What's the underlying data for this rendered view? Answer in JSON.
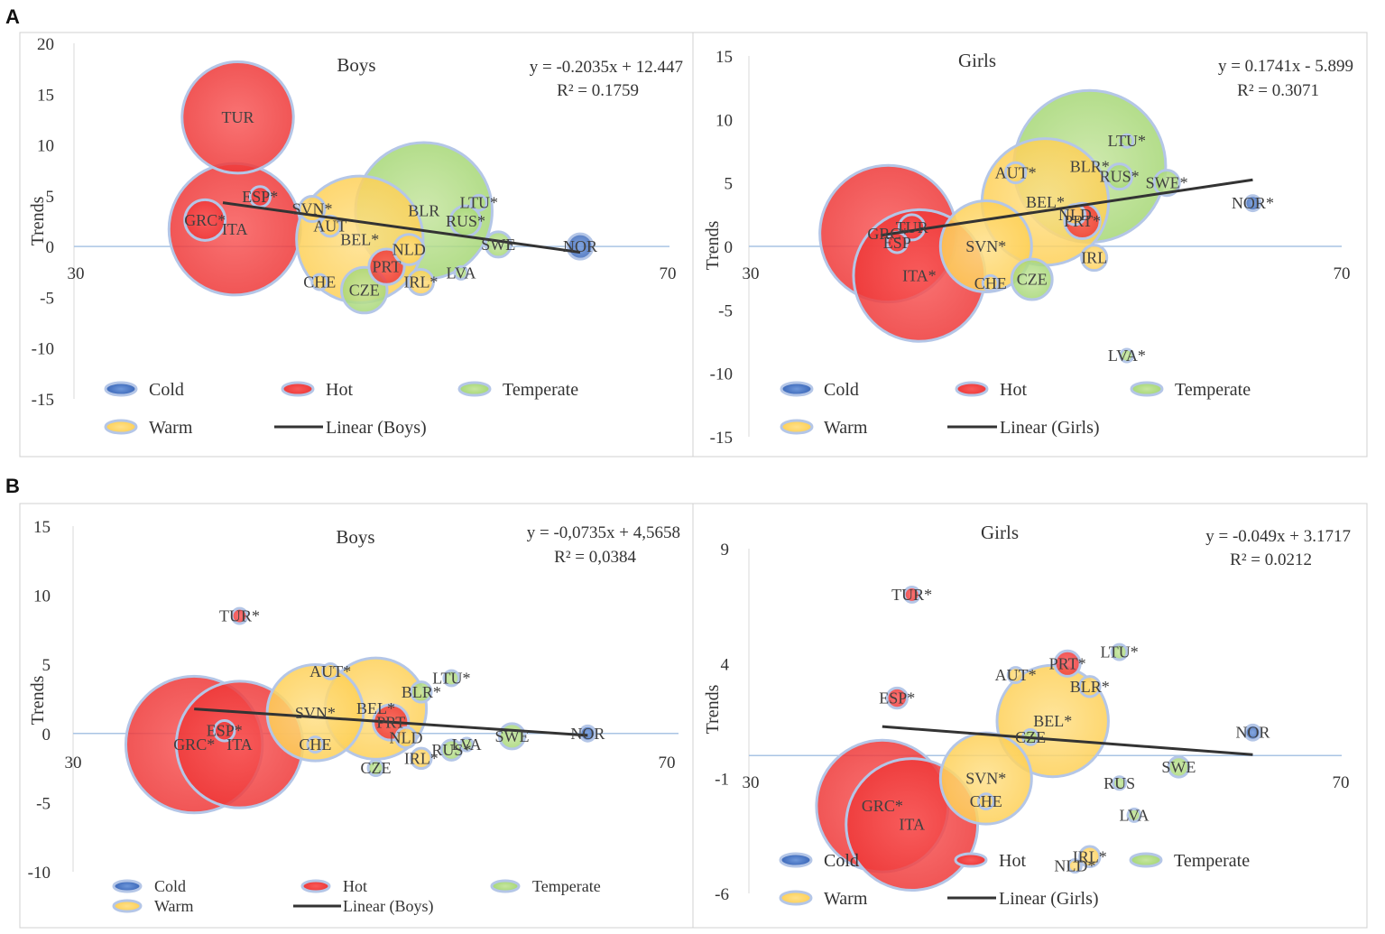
{
  "panel_labels": [
    "A",
    "B"
  ],
  "legend_labels": {
    "cold": "Cold",
    "hot": "Hot",
    "temperate": "Temperate",
    "warm": "Warm"
  },
  "category_colors": {
    "Cold": "#4472C4",
    "Hot": "#F23C3C",
    "Temperate": "#92D050",
    "Warm": "#FFCC33",
    "Border": "#B4C6E7"
  },
  "chart_data": [
    {
      "id": "A-boys",
      "type": "scatter",
      "title": "Boys",
      "ylabel": "Trends",
      "xlim": [
        30,
        70
      ],
      "ylim": [
        -15,
        20
      ],
      "x_ticks": [
        30,
        70
      ],
      "y_ticks": [
        20,
        15,
        10,
        5,
        0,
        -5,
        -10,
        -15
      ],
      "equation": "y = -0.2035x + 12.447",
      "r2": "R² = 0.1759",
      "trend": {
        "name": "Linear (Boys)",
        "x": [
          40,
          64
        ]
      },
      "points": [
        {
          "label": "TUR",
          "x": 41,
          "y": 12.7,
          "size": 22,
          "cat": "Hot"
        },
        {
          "label": "ITA",
          "x": 40.8,
          "y": 1.7,
          "size": 26,
          "cat": "Hot"
        },
        {
          "label": "GRC*",
          "x": 38.8,
          "y": 2.6,
          "size": 8,
          "cat": "Hot"
        },
        {
          "label": "ESP*",
          "x": 42.5,
          "y": 4.9,
          "size": 4,
          "cat": "Hot"
        },
        {
          "label": "SVN*",
          "x": 46,
          "y": 3.7,
          "size": 5,
          "cat": "Warm"
        },
        {
          "label": "AUT",
          "x": 47.2,
          "y": 2,
          "size": 4,
          "cat": "Warm"
        },
        {
          "label": "BEL*",
          "x": 49.2,
          "y": 0.7,
          "size": 25,
          "cat": "Warm"
        },
        {
          "label": "BLR",
          "x": 53.5,
          "y": 3.5,
          "size": 27,
          "cat": "Temperate"
        },
        {
          "label": "NLD",
          "x": 52.5,
          "y": -0.3,
          "size": 6,
          "cat": "Warm"
        },
        {
          "label": "PRT",
          "x": 51,
          "y": -2,
          "size": 7,
          "cat": "Hot"
        },
        {
          "label": "LTU*",
          "x": 57.2,
          "y": 4.3,
          "size": 3,
          "cat": "Temperate"
        },
        {
          "label": "RUS*",
          "x": 56.3,
          "y": 2.5,
          "size": 6,
          "cat": "Temperate"
        },
        {
          "label": "SWE",
          "x": 58.5,
          "y": 0.2,
          "size": 5,
          "cat": "Temperate"
        },
        {
          "label": "NOR",
          "x": 64,
          "y": 0,
          "size": 5,
          "cat": "Cold"
        },
        {
          "label": "LVA",
          "x": 56,
          "y": -2.6,
          "size": 2,
          "cat": "Temperate"
        },
        {
          "label": "CHE",
          "x": 46.5,
          "y": -3.5,
          "size": 3,
          "cat": "Warm"
        },
        {
          "label": "CZE",
          "x": 49.5,
          "y": -4.3,
          "size": 9,
          "cat": "Temperate"
        },
        {
          "label": "IRL*",
          "x": 53.3,
          "y": -3.5,
          "size": 5,
          "cat": "Warm"
        }
      ]
    },
    {
      "id": "A-girls",
      "type": "scatter",
      "title": "Girls",
      "ylabel": "Trends",
      "xlim": [
        30,
        70
      ],
      "ylim": [
        -15,
        15
      ],
      "x_ticks": [
        30,
        70
      ],
      "y_ticks": [
        15,
        10,
        5,
        0,
        -5,
        -10,
        -15
      ],
      "equation": "y = 0.1741x - 5.899",
      "r2": "R² = 0.3071",
      "trend": {
        "name": "Linear (Girls)",
        "x": [
          38.9,
          64
        ]
      },
      "points": [
        {
          "label": "GRC*",
          "x": 39.4,
          "y": 1,
          "size": 27,
          "cat": "Hot"
        },
        {
          "label": "ITA*",
          "x": 41.5,
          "y": -2.3,
          "size": 26,
          "cat": "Hot"
        },
        {
          "label": "TUR",
          "x": 41,
          "y": 1.5,
          "size": 5,
          "cat": "Hot"
        },
        {
          "label": "ESP",
          "x": 40,
          "y": 0.3,
          "size": 4,
          "cat": "Hot"
        },
        {
          "label": "SVN*",
          "x": 46,
          "y": 0,
          "size": 18,
          "cat": "Warm"
        },
        {
          "label": "AUT*",
          "x": 48,
          "y": 5.8,
          "size": 4,
          "cat": "Warm"
        },
        {
          "label": "BEL*",
          "x": 50,
          "y": 3.5,
          "size": 25,
          "cat": "Warm"
        },
        {
          "label": "BLR*",
          "x": 53,
          "y": 6.3,
          "size": 30,
          "cat": "Temperate"
        },
        {
          "label": "PRT*",
          "x": 52.5,
          "y": 2,
          "size": 7,
          "cat": "Hot"
        },
        {
          "label": "NLD",
          "x": 52,
          "y": 2.5,
          "size": 4,
          "cat": "Warm"
        },
        {
          "label": "LTU*",
          "x": 55.5,
          "y": 8.3,
          "size": 2,
          "cat": "Temperate"
        },
        {
          "label": "RUS*",
          "x": 55,
          "y": 5.5,
          "size": 5,
          "cat": "Temperate"
        },
        {
          "label": "SWE*",
          "x": 58.2,
          "y": 5,
          "size": 5,
          "cat": "Temperate"
        },
        {
          "label": "NOR*",
          "x": 64,
          "y": 3.4,
          "size": 3,
          "cat": "Cold"
        },
        {
          "label": "IRL",
          "x": 53.3,
          "y": -0.9,
          "size": 5,
          "cat": "Warm"
        },
        {
          "label": "CHE",
          "x": 46.3,
          "y": -2.9,
          "size": 3,
          "cat": "Warm"
        },
        {
          "label": "CZE",
          "x": 49.1,
          "y": -2.6,
          "size": 8,
          "cat": "Temperate"
        },
        {
          "label": "LVA*",
          "x": 55.5,
          "y": -8.6,
          "size": 2,
          "cat": "Temperate"
        }
      ]
    },
    {
      "id": "B-boys",
      "type": "scatter",
      "title": "Boys",
      "ylabel": "Trends",
      "xlim": [
        30,
        70
      ],
      "ylim": [
        -10,
        15
      ],
      "x_ticks": [
        30,
        70
      ],
      "y_ticks": [
        15,
        10,
        5,
        0,
        -5,
        -10
      ],
      "equation": "y = -0,0735x + 4,5658",
      "r2": "R² = 0,0384",
      "trend": {
        "name": "Linear (Boys)",
        "x": [
          38,
          64
        ]
      },
      "points": [
        {
          "label": "GRC*",
          "x": 38,
          "y": -0.8,
          "size": 27,
          "cat": "Hot"
        },
        {
          "label": "ITA",
          "x": 41,
          "y": -0.8,
          "size": 25,
          "cat": "Hot"
        },
        {
          "label": "ESP*",
          "x": 40,
          "y": 0.2,
          "size": 4,
          "cat": "Hot"
        },
        {
          "label": "TUR*",
          "x": 41,
          "y": 8.5,
          "size": 3,
          "cat": "Hot"
        },
        {
          "label": "SVN*",
          "x": 46,
          "y": 1.5,
          "size": 19,
          "cat": "Warm"
        },
        {
          "label": "CHE",
          "x": 46,
          "y": -0.8,
          "size": 3,
          "cat": "Warm"
        },
        {
          "label": "AUT*",
          "x": 47,
          "y": 4.5,
          "size": 3,
          "cat": "Warm"
        },
        {
          "label": "BEL*",
          "x": 50,
          "y": 1.8,
          "size": 20,
          "cat": "Warm"
        },
        {
          "label": "PRT",
          "x": 51,
          "y": 0.8,
          "size": 7,
          "cat": "Hot"
        },
        {
          "label": "NLD",
          "x": 52,
          "y": -0.3,
          "size": 4,
          "cat": "Warm"
        },
        {
          "label": "CZE",
          "x": 50,
          "y": -2.5,
          "size": 3,
          "cat": "Temperate"
        },
        {
          "label": "BLR*",
          "x": 53,
          "y": 3,
          "size": 4,
          "cat": "Temperate"
        },
        {
          "label": "LTU*",
          "x": 55,
          "y": 4,
          "size": 3,
          "cat": "Temperate"
        },
        {
          "label": "IRL*",
          "x": 53,
          "y": -1.8,
          "size": 4,
          "cat": "Warm"
        },
        {
          "label": "LVA",
          "x": 56,
          "y": -0.8,
          "size": 2,
          "cat": "Temperate"
        },
        {
          "label": "RUS*",
          "x": 55,
          "y": -1.2,
          "size": 4,
          "cat": "Temperate"
        },
        {
          "label": "SWE",
          "x": 59,
          "y": -0.2,
          "size": 5,
          "cat": "Temperate"
        },
        {
          "label": "NOR",
          "x": 64,
          "y": 0,
          "size": 3,
          "cat": "Cold"
        }
      ]
    },
    {
      "id": "B-girls",
      "type": "scatter",
      "title": "Girls",
      "ylabel": "Trends",
      "xlim": [
        30,
        70
      ],
      "ylim": [
        -6,
        9
      ],
      "x_ticks": [
        30,
        70
      ],
      "y_ticks": [
        9,
        4,
        -1,
        -6
      ],
      "equation": "y = -0.049x + 3.1717",
      "r2": "R² = 0.0212",
      "trend": {
        "name": "Linear (Girls)",
        "x": [
          39,
          64
        ]
      },
      "points": [
        {
          "label": "GRC*",
          "x": 39,
          "y": -2.2,
          "size": 26,
          "cat": "Hot"
        },
        {
          "label": "ITA",
          "x": 41,
          "y": -3,
          "size": 26,
          "cat": "Hot"
        },
        {
          "label": "TUR*",
          "x": 41,
          "y": 7,
          "size": 3,
          "cat": "Hot"
        },
        {
          "label": "ESP*",
          "x": 40,
          "y": 2.5,
          "size": 4,
          "cat": "Hot"
        },
        {
          "label": "SVN*",
          "x": 46,
          "y": -1,
          "size": 18,
          "cat": "Warm"
        },
        {
          "label": "CHE",
          "x": 46,
          "y": -2,
          "size": 3,
          "cat": "Warm"
        },
        {
          "label": "AUT*",
          "x": 48,
          "y": 3.5,
          "size": 3,
          "cat": "Warm"
        },
        {
          "label": "BEL*",
          "x": 50.5,
          "y": 1.5,
          "size": 22,
          "cat": "Warm"
        },
        {
          "label": "PRT*",
          "x": 51.5,
          "y": 4,
          "size": 5,
          "cat": "Hot"
        },
        {
          "label": "BLR*",
          "x": 53,
          "y": 3,
          "size": 4,
          "cat": "Warm"
        },
        {
          "label": "CZE",
          "x": 49,
          "y": 0.8,
          "size": 3,
          "cat": "Temperate"
        },
        {
          "label": "LTU*",
          "x": 55,
          "y": 4.5,
          "size": 3,
          "cat": "Temperate"
        },
        {
          "label": "RUS",
          "x": 55,
          "y": -1.2,
          "size": 2,
          "cat": "Temperate"
        },
        {
          "label": "LVA",
          "x": 56,
          "y": -2.6,
          "size": 2,
          "cat": "Temperate"
        },
        {
          "label": "SWE",
          "x": 59,
          "y": -0.5,
          "size": 4,
          "cat": "Temperate"
        },
        {
          "label": "NLD*",
          "x": 52,
          "y": -4.8,
          "size": 2,
          "cat": "Warm"
        },
        {
          "label": "IRL*",
          "x": 53,
          "y": -4.4,
          "size": 4,
          "cat": "Warm"
        },
        {
          "label": "NOR",
          "x": 64,
          "y": 1,
          "size": 3,
          "cat": "Cold"
        }
      ]
    }
  ]
}
